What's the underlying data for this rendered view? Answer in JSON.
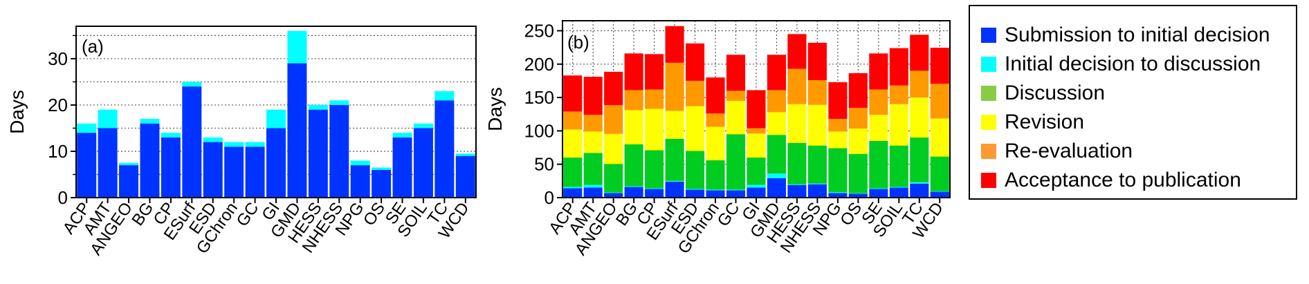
{
  "chart_data": [
    {
      "type": "bar",
      "stacked": true,
      "panel_label": "(a)",
      "title": "",
      "xlabel": "",
      "ylabel": "Days",
      "ylim": [
        0,
        37
      ],
      "yticks": [
        0,
        10,
        20,
        30
      ],
      "minor_gridlines": [
        5,
        15,
        25,
        35
      ],
      "grid": "dotted horizontal gridlines",
      "categories": [
        "ACP",
        "AMT",
        "ANGEO",
        "BG",
        "CP",
        "ESurf",
        "ESD",
        "GChron",
        "GC",
        "GI",
        "GMD",
        "HESS",
        "NHESS",
        "NPG",
        "OS",
        "SE",
        "SOIL",
        "TC",
        "WCD"
      ],
      "series": [
        {
          "name": "Submission to initial decision",
          "color": "#0033ff",
          "values": [
            14,
            15,
            7,
            16,
            13,
            24,
            12,
            11,
            11,
            15,
            29,
            19,
            20,
            7,
            6,
            13,
            15,
            21,
            9
          ]
        },
        {
          "name": "Initial decision to discussion",
          "color": "#00ffff",
          "values": [
            2,
            4,
            0.5,
            1,
            1,
            1,
            1,
            1,
            1,
            4,
            7,
            1,
            1,
            1,
            0.5,
            1,
            1,
            2,
            0.5
          ]
        }
      ]
    },
    {
      "type": "bar",
      "stacked": true,
      "panel_label": "(b)",
      "title": "",
      "xlabel": "",
      "ylabel": "Days",
      "ylim": [
        0,
        265
      ],
      "yticks": [
        0,
        50,
        100,
        150,
        200,
        250
      ],
      "grid": "dotted horizontal and vertical gridlines",
      "categories": [
        "ACP",
        "AMT",
        "ANGEO",
        "BG",
        "CP",
        "ESurf",
        "ESD",
        "GChron",
        "GC",
        "GI",
        "GMD",
        "HESS",
        "NHESS",
        "NPG",
        "OS",
        "SE",
        "SOIL",
        "TC",
        "WCD"
      ],
      "series": [
        {
          "name": "Submission to initial decision",
          "color": "#0033ff",
          "values": [
            14,
            15,
            7,
            16,
            13,
            24,
            12,
            11,
            11,
            15,
            29,
            19,
            20,
            7,
            6,
            13,
            15,
            21,
            9
          ]
        },
        {
          "name": "Initial decision to discussion",
          "color": "#00ffff",
          "values": [
            2,
            4,
            0.5,
            1,
            1,
            1,
            1,
            1,
            1,
            4,
            7,
            1,
            1,
            1,
            0.5,
            1,
            1,
            2,
            0.5
          ]
        },
        {
          "name": "Discussion",
          "color": "#00cc22",
          "values": [
            44,
            48,
            43,
            63,
            57,
            63,
            57,
            44,
            83,
            41,
            58,
            62,
            57,
            66,
            59,
            71,
            62,
            67,
            52
          ]
        },
        {
          "name": "Revision",
          "color": "#ffff00",
          "values": [
            42,
            32,
            45,
            51,
            62,
            42,
            67,
            50,
            50,
            36,
            34,
            58,
            61,
            25,
            38,
            39,
            62,
            60,
            57
          ]
        },
        {
          "name": "Re-evaluation",
          "color": "#ff9900",
          "values": [
            27,
            25,
            43,
            30,
            29,
            72,
            38,
            20,
            15,
            8,
            33,
            53,
            37,
            19,
            31,
            38,
            28,
            40,
            52
          ]
        },
        {
          "name": "Acceptance to publication",
          "color": "#ff0000",
          "values": [
            54,
            57,
            50,
            55,
            53,
            55,
            56,
            54,
            54,
            57,
            53,
            52,
            56,
            55,
            52,
            54,
            56,
            54,
            54
          ]
        }
      ]
    }
  ],
  "legend": {
    "placement": "right of panel (b)",
    "items": [
      {
        "label": "Submission to initial decision",
        "color": "#0033ff"
      },
      {
        "label": "Initial decision to discussion",
        "color": "#00ffff"
      },
      {
        "label": "Discussion",
        "color": "#88cc44"
      },
      {
        "label": "Revision",
        "color": "#ffff00"
      },
      {
        "label": "Re-evaluation",
        "color": "#ff9933"
      },
      {
        "label": "Acceptance to publication",
        "color": "#ff0000"
      }
    ]
  }
}
